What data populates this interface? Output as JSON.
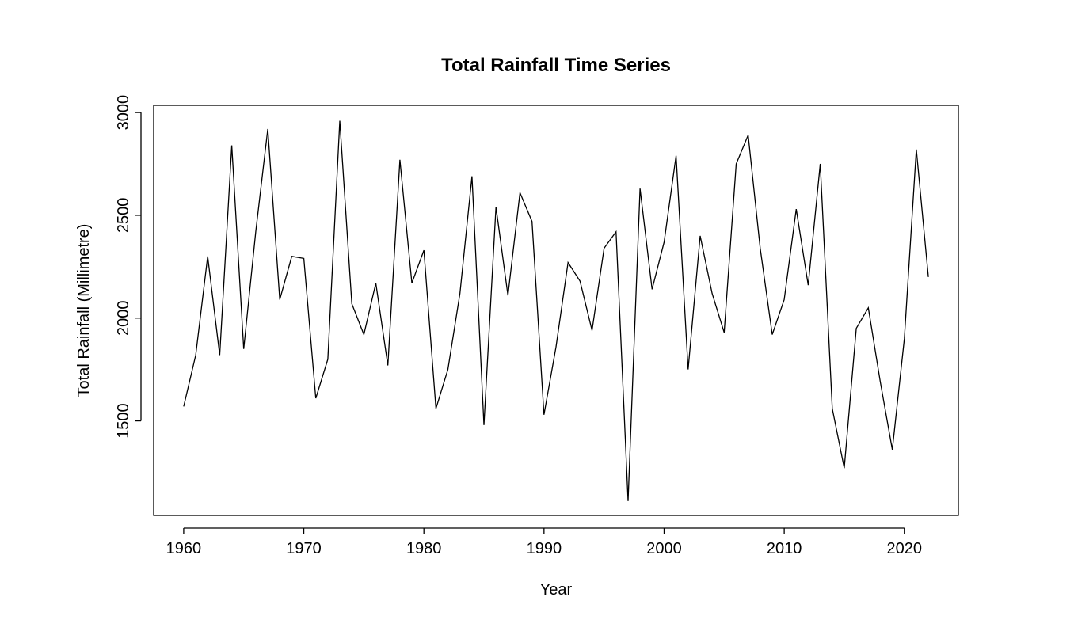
{
  "chart_data": {
    "type": "line",
    "title": "Total Rainfall Time Series",
    "xlabel": "Year",
    "ylabel": "Total Rainfall (Millimetre)",
    "xlim": [
      1957.5,
      2024.5
    ],
    "ylim": [
      1040,
      3035
    ],
    "x_ticks": [
      1960,
      1970,
      1980,
      1990,
      2000,
      2010,
      2020
    ],
    "y_ticks": [
      1500,
      2000,
      2500,
      3000
    ],
    "grid": false,
    "legend": "none",
    "line_color": "#000000",
    "x": [
      1960,
      1961,
      1962,
      1963,
      1964,
      1965,
      1966,
      1967,
      1968,
      1969,
      1970,
      1971,
      1972,
      1973,
      1974,
      1975,
      1976,
      1977,
      1978,
      1979,
      1980,
      1981,
      1982,
      1983,
      1984,
      1985,
      1986,
      1987,
      1988,
      1989,
      1990,
      1991,
      1992,
      1993,
      1994,
      1995,
      1996,
      1997,
      1998,
      1999,
      2000,
      2001,
      2002,
      2003,
      2004,
      2005,
      2006,
      2007,
      2008,
      2009,
      2010,
      2011,
      2012,
      2013,
      2014,
      2015,
      2016,
      2017,
      2018,
      2019,
      2020,
      2021,
      2022
    ],
    "values": [
      1570,
      1820,
      2300,
      1820,
      2840,
      1850,
      2420,
      2920,
      2090,
      2300,
      2290,
      1610,
      1800,
      2960,
      2070,
      1920,
      2170,
      1770,
      2770,
      2170,
      2330,
      1560,
      1750,
      2120,
      2690,
      1480,
      2540,
      2110,
      2610,
      2470,
      1530,
      1860,
      2270,
      2180,
      1940,
      2340,
      2420,
      1110,
      2630,
      2140,
      2370,
      2790,
      1750,
      2400,
      2120,
      1930,
      2750,
      2890,
      2340,
      1920,
      2090,
      2530,
      2160,
      2750,
      1560,
      1270,
      1950,
      2050,
      1690,
      1360,
      1900,
      2820,
      2200
    ]
  }
}
